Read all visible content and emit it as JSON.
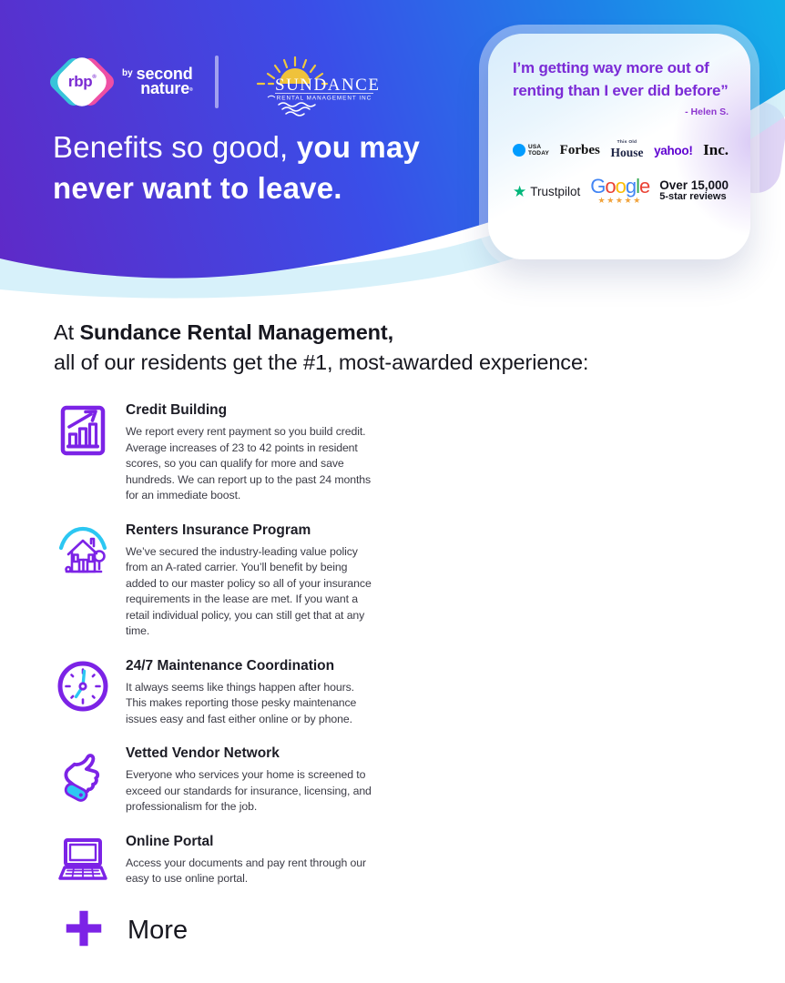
{
  "header": {
    "rbp": {
      "text": "rbp",
      "reg": "®",
      "by": "by",
      "line1": "second",
      "line2": "nature",
      "line2_reg": "®"
    },
    "sundance": {
      "name": "SUNDANCE",
      "tagline": "RENTAL MANAGEMENT INC"
    },
    "headline": {
      "part1": "Benefits so good, ",
      "part2": "you may",
      "part3": "never want to leave."
    },
    "testimonial": {
      "line1": "I’m getting way more out of",
      "line2": "renting than I ever did before”",
      "attribution": "- Helen S."
    },
    "media": {
      "usa_today": {
        "line1": "USA",
        "line2": "TODAY"
      },
      "forbes": "Forbes",
      "this_old_house": {
        "small": "This Old",
        "big": "House"
      },
      "yahoo": "yahoo!",
      "inc": "Inc."
    },
    "reviews": {
      "trustpilot_star": "★",
      "trustpilot": "Trustpilot",
      "google_letters": [
        {
          "c": "G",
          "color": "#4285F4"
        },
        {
          "c": "o",
          "color": "#EA4335"
        },
        {
          "c": "o",
          "color": "#FBBC05"
        },
        {
          "c": "g",
          "color": "#4285F4"
        },
        {
          "c": "l",
          "color": "#34A853"
        },
        {
          "c": "e",
          "color": "#EA4335"
        }
      ],
      "stars": "★★★★★",
      "stat_line1": "Over 15,000",
      "stat_line2": "5-star reviews"
    }
  },
  "intro": {
    "part1": "At ",
    "part2": "Sundance Rental Management,",
    "line2": "all of our residents get the #1, most-awarded experience:"
  },
  "benefits": [
    {
      "icon": "bar-chart-icon",
      "title": "Credit Building",
      "description": "We report every rent payment so you build credit. Average increases of 23 to 42 points in resident scores, so you can qualify for more and save hundreds. We can report up to the past 24 months for an immediate boost."
    },
    {
      "icon": "insured-home-icon",
      "title": "Renters Insurance Program",
      "description": "We’ve secured the industry-leading value policy from an A-rated carrier. You’ll benefit by being added to our master policy so all of your insurance requirements in the lease are met. If you want a retail individual policy, you can still get that at any time."
    },
    {
      "icon": "clock-icon",
      "title": "24/7 Maintenance Coordination",
      "description": "It always seems like things happen after hours. This makes reporting those pesky maintenance issues easy and fast either online or by phone."
    },
    {
      "icon": "thumbs-up-icon",
      "title": "Vetted Vendor Network",
      "description": "Everyone who services your home is screened to exceed our standards for insurance, licensing, and professionalism for the job."
    },
    {
      "icon": "laptop-icon",
      "title": "Online Portal",
      "description": "Access your documents and pay rent through our easy to use online portal."
    }
  ],
  "more": {
    "label": "More"
  },
  "colors": {
    "accent_purple": "#7c23e6",
    "accent_cyan": "#2cc7f2",
    "quote_purple": "#7b2bd6",
    "trustpilot_green": "#00b67a",
    "star_gold": "#f1a33c",
    "usa_today_blue": "#009cff",
    "yahoo_purple": "#5f01d1",
    "gradient": [
      "#5e2ac8",
      "#3a4ee8",
      "#1e82e8",
      "#12aee8"
    ]
  }
}
